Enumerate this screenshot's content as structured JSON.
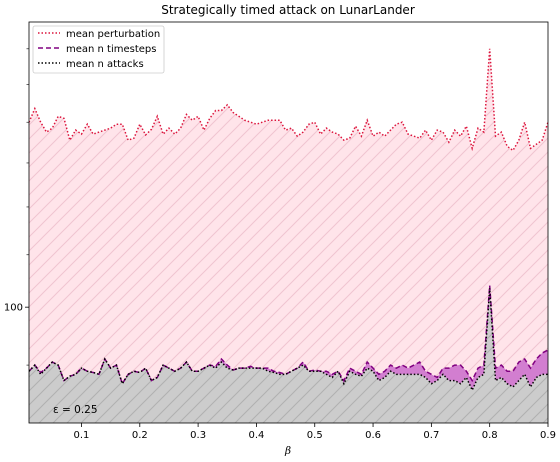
{
  "chart_data": {
    "type": "line",
    "title": "Strategically timed attack on LunarLander",
    "xlabel": "β",
    "ylabel": "",
    "xlim": [
      0.01,
      0.9
    ],
    "ylim": [
      81,
      168
    ],
    "y_scale": "log",
    "x_ticks": [
      0.1,
      0.2,
      0.3,
      0.4,
      0.5,
      0.6,
      0.7,
      0.8,
      0.9
    ],
    "x_tick_labels": [
      "0.1",
      "0.2",
      "0.3",
      "0.4",
      "0.5",
      "0.6",
      "0.7",
      "0.8",
      "0.9"
    ],
    "y_ticks": [
      100
    ],
    "y_tick_labels": [
      "100"
    ],
    "y_minor_ticks": [
      90,
      110,
      120,
      130,
      140,
      150,
      160
    ],
    "grid": false,
    "legend_position": "top-left",
    "annotation": "ε = 0.25",
    "x": [
      0.01,
      0.02,
      0.03,
      0.04,
      0.05,
      0.06,
      0.07,
      0.08,
      0.09,
      0.1,
      0.11,
      0.12,
      0.13,
      0.14,
      0.15,
      0.16,
      0.17,
      0.18,
      0.19,
      0.2,
      0.21,
      0.22,
      0.23,
      0.24,
      0.25,
      0.26,
      0.27,
      0.28,
      0.29,
      0.3,
      0.31,
      0.32,
      0.33,
      0.34,
      0.35,
      0.36,
      0.37,
      0.38,
      0.39,
      0.4,
      0.41,
      0.42,
      0.43,
      0.44,
      0.45,
      0.46,
      0.47,
      0.48,
      0.49,
      0.5,
      0.51,
      0.52,
      0.53,
      0.54,
      0.55,
      0.56,
      0.57,
      0.58,
      0.59,
      0.6,
      0.61,
      0.62,
      0.63,
      0.64,
      0.65,
      0.66,
      0.67,
      0.68,
      0.69,
      0.7,
      0.71,
      0.72,
      0.73,
      0.74,
      0.75,
      0.76,
      0.77,
      0.78,
      0.79,
      0.8,
      0.81,
      0.82,
      0.83,
      0.84,
      0.85,
      0.86,
      0.87,
      0.88,
      0.89,
      0.9
    ],
    "series": [
      {
        "name": "mean perturbation",
        "color": "#dc143c",
        "style": "dotted",
        "fill": "#ffe4ea",
        "hatch": "#f0c4d0",
        "values": [
          140.0,
          143.5,
          140.0,
          137.5,
          138.5,
          141.5,
          141.0,
          135.5,
          138.0,
          137.0,
          139.5,
          137.0,
          137.5,
          138.0,
          138.5,
          139.5,
          139.5,
          135.5,
          136.0,
          139.5,
          136.8,
          138.2,
          141.5,
          137.0,
          138.5,
          137.0,
          138.5,
          142.0,
          140.5,
          141.5,
          138.0,
          141.0,
          143.0,
          143.0,
          144.5,
          142.5,
          141.5,
          140.5,
          140.0,
          139.5,
          140.0,
          140.5,
          140.5,
          140.5,
          138.0,
          138.5,
          136.5,
          137.5,
          139.5,
          140.0,
          137.0,
          138.5,
          137.5,
          137.0,
          135.5,
          136.0,
          139.0,
          136.5,
          140.5,
          136.5,
          137.5,
          136.5,
          138.0,
          139.5,
          140.0,
          137.0,
          136.5,
          136.0,
          138.0,
          135.5,
          138.0,
          137.5,
          135.0,
          138.0,
          136.5,
          139.0,
          133.5,
          138.5,
          137.5,
          160.0,
          136.5,
          137.5,
          134.0,
          133.0,
          135.5,
          140.0,
          133.5,
          134.5,
          135.5,
          140.0
        ]
      },
      {
        "name": "mean n timesteps",
        "color": "#800080",
        "style": "dashed",
        "fill": "#d27ed0",
        "values": [
          89.0,
          90.0,
          88.8,
          89.5,
          90.5,
          90.0,
          87.5,
          88.2,
          88.5,
          89.5,
          89.0,
          88.8,
          88.5,
          91.0,
          89.5,
          90.0,
          87.0,
          88.5,
          89.0,
          88.8,
          89.5,
          87.5,
          88.0,
          90.0,
          89.5,
          89.0,
          89.5,
          90.5,
          89.0,
          89.0,
          89.5,
          90.0,
          89.8,
          91.0,
          90.0,
          89.2,
          89.5,
          89.5,
          89.8,
          89.5,
          89.5,
          89.5,
          89.0,
          88.8,
          88.5,
          89.0,
          89.5,
          90.5,
          89.0,
          89.2,
          89.0,
          89.0,
          88.5,
          89.0,
          87.5,
          89.5,
          89.0,
          88.5,
          90.5,
          89.5,
          88.5,
          89.0,
          90.0,
          89.5,
          90.0,
          89.5,
          90.0,
          90.5,
          89.0,
          88.5,
          88.0,
          89.5,
          89.5,
          90.0,
          90.0,
          89.0,
          87.5,
          89.5,
          90.0,
          104.0,
          89.5,
          90.0,
          89.0,
          89.0,
          90.5,
          91.0,
          89.5,
          91.0,
          92.0,
          92.5
        ]
      },
      {
        "name": "mean n attacks",
        "color": "#000000",
        "style": "dotted",
        "fill": "#cccccc",
        "hatch": "#b0b0b0",
        "values": [
          89.0,
          90.0,
          88.5,
          89.5,
          90.5,
          90.0,
          87.5,
          88.2,
          88.5,
          89.5,
          89.0,
          88.8,
          88.5,
          91.0,
          89.5,
          90.0,
          87.0,
          88.5,
          89.0,
          88.8,
          89.5,
          87.5,
          88.0,
          90.0,
          89.5,
          89.0,
          89.5,
          90.5,
          89.0,
          89.0,
          89.5,
          90.0,
          89.5,
          90.5,
          89.5,
          89.2,
          89.5,
          89.5,
          89.5,
          89.5,
          89.5,
          89.0,
          88.8,
          88.5,
          88.5,
          89.0,
          89.5,
          90.0,
          89.0,
          89.0,
          89.0,
          88.5,
          88.0,
          89.0,
          87.0,
          89.0,
          88.5,
          88.2,
          89.5,
          89.0,
          87.5,
          88.0,
          89.0,
          88.5,
          88.5,
          88.5,
          88.5,
          88.5,
          88.0,
          87.0,
          87.5,
          88.5,
          87.5,
          87.5,
          87.0,
          88.0,
          86.0,
          88.0,
          88.5,
          103.5,
          87.5,
          88.0,
          87.0,
          86.5,
          87.5,
          88.5,
          86.5,
          88.0,
          88.5,
          88.5
        ]
      }
    ]
  }
}
